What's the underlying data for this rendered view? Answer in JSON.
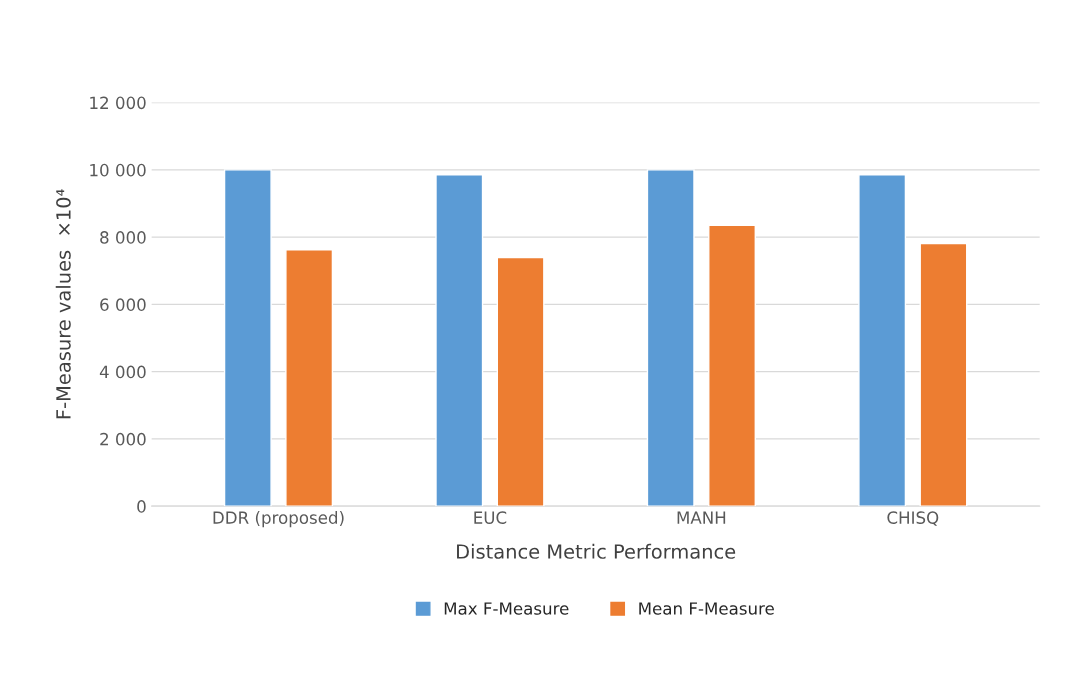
{
  "chart_data": {
    "type": "bar",
    "xlabel": "Distance Metric Performance",
    "ylabel": "F-Measure values  ×10⁴",
    "categories": [
      "DDR (proposed)",
      "EUC",
      "MANH",
      "CHISQ"
    ],
    "series": [
      {
        "name": "Max F-Measure",
        "color": "#5b9bd5",
        "values": [
          10000,
          9850,
          10000,
          9850
        ]
      },
      {
        "name": "Mean F-Measure",
        "color": "#ed7d31",
        "values": [
          7620,
          7390,
          8350,
          7810
        ]
      }
    ],
    "ylim": [
      0,
      12000
    ],
    "yticks": [
      0,
      {
        "value": 2000,
        "label": "2 000"
      },
      {
        "value": 4000,
        "label": "4 000"
      },
      {
        "value": 6000,
        "label": "6 000"
      },
      {
        "value": 8000,
        "label": "8 000"
      },
      {
        "value": 10000,
        "label": "10 000"
      },
      {
        "value": 12000,
        "label": "12 000"
      }
    ],
    "grid": "y",
    "legend": "bottom"
  }
}
